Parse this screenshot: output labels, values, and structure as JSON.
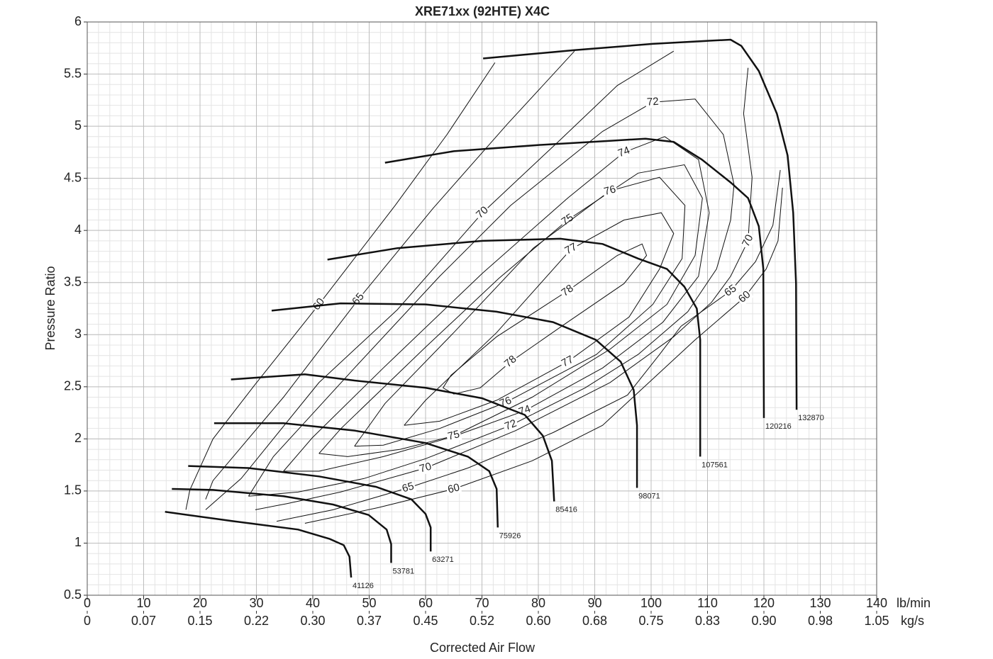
{
  "chart_data": {
    "type": "line",
    "title": "XRE71xx (92HTE) X4C",
    "x_label": "Corrected Air Flow",
    "y_label": "Pressure Ratio",
    "x_unit": "lb/min",
    "x2_unit": "kg/s",
    "xlim": [
      0,
      140
    ],
    "ylim": [
      0.5,
      6
    ],
    "xticks": [
      0,
      10,
      20,
      30,
      40,
      50,
      60,
      70,
      80,
      90,
      100,
      110,
      120,
      130,
      140
    ],
    "x2ticks": [
      {
        "value": 0,
        "label": "0"
      },
      {
        "value": 10,
        "label": "0.07"
      },
      {
        "value": 20,
        "label": "0.15"
      },
      {
        "value": 30,
        "label": "0.22"
      },
      {
        "value": 40,
        "label": "0.30"
      },
      {
        "value": 50,
        "label": "0.37"
      },
      {
        "value": 60,
        "label": "0.45"
      },
      {
        "value": 70,
        "label": "0.52"
      },
      {
        "value": 80,
        "label": "0.60"
      },
      {
        "value": 90,
        "label": "0.68"
      },
      {
        "value": 100,
        "label": "0.75"
      },
      {
        "value": 110,
        "label": "0.83"
      },
      {
        "value": 120,
        "label": "0.90"
      },
      {
        "value": 130,
        "label": "0.98"
      },
      {
        "value": 140,
        "label": "1.05"
      }
    ],
    "yticks": [
      0.5,
      1,
      1.5,
      2,
      2.5,
      3,
      3.5,
      4,
      4.5,
      5,
      5.5,
      6
    ],
    "grid": true,
    "minor_grid": [
      2,
      0.1
    ],
    "color": "#111111",
    "series": [
      {
        "name": "41126",
        "x": [
          13.8,
          26.0,
          37.4,
          43.0,
          45.5,
          46.5,
          46.8
        ],
        "y": [
          1.3,
          1.21,
          1.13,
          1.04,
          0.98,
          0.87,
          0.67
        ]
      },
      {
        "name": "53781",
        "x": [
          15.0,
          22.3,
          34.8,
          43.6,
          49.9,
          53.1,
          53.9,
          53.9
        ],
        "y": [
          1.52,
          1.51,
          1.45,
          1.37,
          1.27,
          1.13,
          0.99,
          0.81
        ]
      },
      {
        "name": "63271",
        "x": [
          17.9,
          28.6,
          41.1,
          51.2,
          57.5,
          60.0,
          60.9,
          60.9
        ],
        "y": [
          1.74,
          1.72,
          1.64,
          1.54,
          1.42,
          1.28,
          1.15,
          0.92
        ]
      },
      {
        "name": "75926",
        "x": [
          22.5,
          34.8,
          47.4,
          60.0,
          67.5,
          71.3,
          72.6,
          72.8
        ],
        "y": [
          2.15,
          2.15,
          2.08,
          1.96,
          1.83,
          1.69,
          1.52,
          1.15
        ]
      },
      {
        "name": "85416",
        "x": [
          25.5,
          38.6,
          47.4,
          60.0,
          70.0,
          77.6,
          80.8,
          82.4,
          82.8
        ],
        "y": [
          2.57,
          2.62,
          2.56,
          2.49,
          2.39,
          2.23,
          2.03,
          1.79,
          1.4
        ]
      },
      {
        "name": "98071",
        "x": [
          32.7,
          44.9,
          60.0,
          72.6,
          82.6,
          90.2,
          94.6,
          96.9,
          97.5,
          97.5
        ],
        "y": [
          3.23,
          3.3,
          3.29,
          3.22,
          3.12,
          2.95,
          2.74,
          2.47,
          2.13,
          1.53
        ]
      },
      {
        "name": "107561",
        "x": [
          42.6,
          55.0,
          70.1,
          83.9,
          91.4,
          97.7,
          102.8,
          105.9,
          108.1,
          108.7,
          108.7
        ],
        "y": [
          3.72,
          3.83,
          3.9,
          3.92,
          3.87,
          3.73,
          3.63,
          3.46,
          3.25,
          2.95,
          1.83
        ]
      },
      {
        "name": "120216",
        "x": [
          52.8,
          65.0,
          80.1,
          92.7,
          99.0,
          104.0,
          109.0,
          114.1,
          117.2,
          119.1,
          119.9,
          120.0
        ],
        "y": [
          4.65,
          4.76,
          4.82,
          4.86,
          4.88,
          4.85,
          4.68,
          4.46,
          4.31,
          4.04,
          3.63,
          2.2
        ]
      },
      {
        "name": "132870",
        "x": [
          70.2,
          86.4,
          100.3,
          110.3,
          114.1,
          116.0,
          119.1,
          122.3,
          124.2,
          125.2,
          125.7,
          125.8
        ],
        "y": [
          5.65,
          5.73,
          5.79,
          5.82,
          5.83,
          5.77,
          5.53,
          5.12,
          4.72,
          4.17,
          3.49,
          2.28
        ]
      }
    ],
    "contours": [
      {
        "value": 60,
        "x": [
          17.5,
          18.2,
          22.3,
          29.6,
          41.1,
          54.6,
          63.8,
          72.3,
          null,
          123.3,
          122.5,
          120.4,
          116.6,
          107.8,
          91.4,
          78.9,
          65.0,
          51.6,
          38.6
        ],
        "y": [
          1.32,
          1.51,
          2.0,
          2.51,
          3.29,
          4.24,
          4.92,
          5.61,
          null,
          4.41,
          3.9,
          3.63,
          3.36,
          2.95,
          2.13,
          1.79,
          1.52,
          1.34,
          1.19
        ]
      },
      {
        "value": 65,
        "x": [
          21.0,
          22.3,
          34.8,
          48.1,
          61.3,
          74.5,
          86.4,
          null,
          122.9,
          121.6,
          118.5,
          114.1,
          105.3,
          101.5,
          95.8,
          82.6,
          67.5,
          56.9,
          43.6,
          33.6
        ],
        "y": [
          1.42,
          1.6,
          2.4,
          3.34,
          4.21,
          5.02,
          5.72,
          null,
          4.58,
          4.05,
          3.7,
          3.42,
          3.08,
          2.81,
          2.42,
          2.06,
          1.72,
          1.53,
          1.32,
          1.21
        ]
      },
      {
        "value": 70,
        "x": [
          21.0,
          27.3,
          41.1,
          55.0,
          70.1,
          83.5,
          94.0,
          104.0,
          null,
          117.2,
          116.4,
          117.9,
          117.2,
          114.1,
          110.7,
          104.0,
          92.7,
          76.0,
          60.0,
          44.9,
          35.5,
          29.8
        ],
        "y": [
          1.32,
          1.62,
          2.54,
          3.24,
          4.17,
          4.85,
          5.39,
          5.72,
          null,
          5.56,
          5.12,
          4.51,
          3.9,
          3.56,
          3.31,
          2.98,
          2.54,
          2.08,
          1.72,
          1.49,
          1.38,
          1.32
        ]
      },
      {
        "value": 72,
        "x": [
          28.6,
          33.0,
          47.4,
          62.5,
          75.1,
          91.4,
          100.3,
          107.8,
          112.8,
          114.7,
          114.1,
          111.6,
          106.5,
          97.7,
          88.3,
          75.1,
          60.0,
          49.1,
          37.4,
          28.6
        ],
        "y": [
          1.45,
          1.83,
          2.68,
          3.56,
          4.24,
          4.95,
          5.23,
          5.26,
          4.92,
          4.44,
          4.1,
          3.63,
          3.22,
          2.81,
          2.49,
          2.13,
          1.81,
          1.62,
          1.49,
          1.45
        ]
      },
      {
        "value": 74,
        "x": [
          34.8,
          39.9,
          52.5,
          70.1,
          85.2,
          95.2,
          102.4,
          108.4,
          110.3,
          108.4,
          102.1,
          91.4,
          77.6,
          64.8,
          52.5,
          41.1,
          34.8
        ],
        "y": [
          1.69,
          2.01,
          2.68,
          3.59,
          4.31,
          4.75,
          4.9,
          4.68,
          4.17,
          3.56,
          3.12,
          2.68,
          2.27,
          2.02,
          1.83,
          1.69,
          1.69
        ]
      },
      {
        "value": 75,
        "x": [
          41.1,
          45.0,
          60.0,
          73.0,
          85.2,
          97.7,
          105.9,
          109.1,
          107.8,
          102.8,
          92.7,
          78.9,
          65.0,
          55.5,
          46.2,
          41.1
        ],
        "y": [
          1.86,
          2.1,
          2.88,
          3.54,
          4.1,
          4.55,
          4.63,
          4.31,
          3.76,
          3.29,
          2.86,
          2.4,
          2.03,
          1.9,
          1.83,
          1.86
        ]
      },
      {
        "value": 76,
        "x": [
          47.4,
          52.8,
          65.0,
          79.1,
          92.7,
          101.5,
          106.0,
          105.5,
          100.3,
          90.3,
          74.2,
          62.5,
          52.5,
          47.4
        ],
        "y": [
          1.93,
          2.34,
          3.02,
          3.83,
          4.38,
          4.51,
          4.24,
          3.73,
          3.29,
          2.81,
          2.35,
          2.1,
          1.94,
          1.93
        ]
      },
      {
        "value": 77,
        "x": [
          56.2,
          60.0,
          72.6,
          85.8,
          95.2,
          101.8,
          104.0,
          101.5,
          96.1,
          85.2,
          72.6,
          62.5,
          56.2
        ],
        "y": [
          2.13,
          2.37,
          3.02,
          3.82,
          4.1,
          4.17,
          3.97,
          3.63,
          3.17,
          2.74,
          2.37,
          2.17,
          2.13
        ]
      },
      {
        "value": 78,
        "x": [
          63.1,
          64.5,
          72.6,
          85.2,
          94.0,
          98.4,
          99.2,
          95.2,
          85.2,
          75.1,
          69.7,
          65.0,
          63.1
        ],
        "y": [
          2.49,
          2.61,
          2.98,
          3.42,
          3.76,
          3.87,
          3.76,
          3.49,
          3.12,
          2.74,
          2.49,
          2.43,
          2.49
        ]
      }
    ]
  }
}
